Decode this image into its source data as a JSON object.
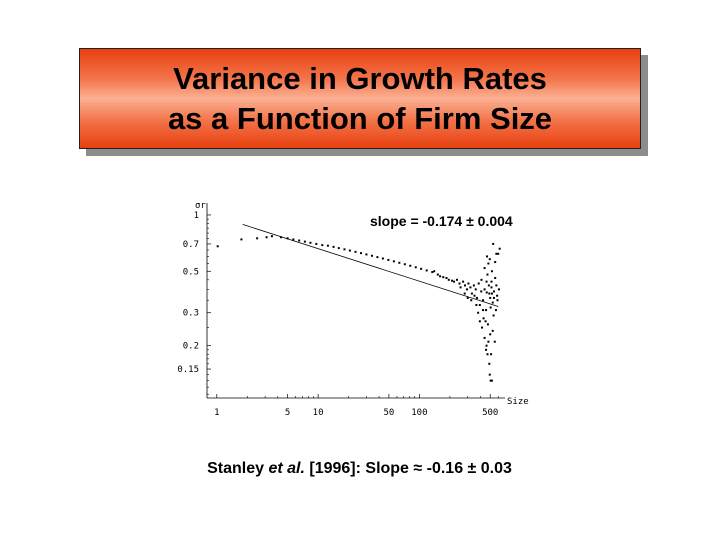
{
  "title": {
    "line1": "Variance in Growth Rates",
    "line2": "as a Function of Firm Size"
  },
  "chart_data": {
    "type": "scatter",
    "xlabel": "Size",
    "ylabel": "σr",
    "x_scale": "log",
    "y_scale": "log",
    "xlim": [
      0.8,
      700
    ],
    "ylim": [
      0.105,
      1.05
    ],
    "x_ticks": [
      1,
      5,
      10,
      50,
      100,
      500
    ],
    "x_tick_labels": [
      "1",
      "5",
      "10",
      "50",
      "100",
      "500"
    ],
    "y_ticks": [
      1,
      0.7,
      0.5,
      0.3,
      0.2,
      0.15
    ],
    "y_tick_labels": [
      "1",
      "0.7",
      "0.5",
      "0.3",
      "0.2",
      "0.15"
    ],
    "annotation": "slope = -0.174 ± 0.004",
    "grid": false,
    "fit_line": {
      "slope": -0.174,
      "x_start": 1.8,
      "x_end": 600,
      "y_start": 0.89
    },
    "series": [
      {
        "points": [
          [
            1.02,
            0.68
          ],
          [
            1.75,
            0.74
          ],
          [
            2.5,
            0.75
          ],
          [
            3.1,
            0.76
          ],
          [
            3.5,
            0.77
          ],
          [
            4.3,
            0.76
          ],
          [
            5,
            0.75
          ],
          [
            5.7,
            0.74
          ],
          [
            6.5,
            0.73
          ],
          [
            7.4,
            0.72
          ],
          [
            8.4,
            0.71
          ],
          [
            9.6,
            0.7
          ],
          [
            11,
            0.69
          ],
          [
            12.5,
            0.685
          ],
          [
            14.2,
            0.675
          ],
          [
            16,
            0.665
          ],
          [
            18.2,
            0.655
          ],
          [
            20.6,
            0.645
          ],
          [
            23.4,
            0.635
          ],
          [
            26.5,
            0.625
          ],
          [
            30,
            0.615
          ],
          [
            34,
            0.605
          ],
          [
            38.5,
            0.595
          ],
          [
            43.6,
            0.585
          ],
          [
            49.4,
            0.575
          ],
          [
            56,
            0.565
          ],
          [
            63.4,
            0.555
          ],
          [
            71.8,
            0.545
          ],
          [
            81.3,
            0.535
          ],
          [
            92,
            0.525
          ],
          [
            104,
            0.515
          ],
          [
            118,
            0.505
          ],
          [
            134,
            0.495
          ],
          [
            152,
            0.48
          ],
          [
            172,
            0.465
          ],
          [
            195,
            0.45
          ],
          [
            220,
            0.44
          ],
          [
            249,
            0.43
          ],
          [
            282,
            0.42
          ],
          [
            319,
            0.41
          ],
          [
            360,
            0.4
          ],
          [
            408,
            0.39
          ],
          [
            462,
            0.385
          ],
          [
            520,
            0.38
          ],
          [
            585,
            0.37
          ],
          [
            140,
            0.5
          ],
          [
            160,
            0.47
          ],
          [
            185,
            0.46
          ],
          [
            210,
            0.445
          ],
          [
            235,
            0.45
          ],
          [
            255,
            0.41
          ],
          [
            270,
            0.44
          ],
          [
            295,
            0.4
          ],
          [
            305,
            0.43
          ],
          [
            330,
            0.38
          ],
          [
            345,
            0.42
          ],
          [
            370,
            0.36
          ],
          [
            385,
            0.43
          ],
          [
            395,
            0.33
          ],
          [
            410,
            0.45
          ],
          [
            425,
            0.35
          ],
          [
            440,
            0.4
          ],
          [
            455,
            0.31
          ],
          [
            470,
            0.48
          ],
          [
            485,
            0.42
          ],
          [
            500,
            0.36
          ],
          [
            515,
            0.44
          ],
          [
            530,
            0.34
          ],
          [
            545,
            0.39
          ],
          [
            560,
            0.46
          ],
          [
            590,
            0.35
          ],
          [
            610,
            0.4
          ],
          [
            380,
            0.3
          ],
          [
            430,
            0.28
          ],
          [
            475,
            0.26
          ],
          [
            505,
            0.32
          ],
          [
            540,
            0.29
          ],
          [
            570,
            0.31
          ],
          [
            450,
            0.27
          ],
          [
            415,
            0.25
          ],
          [
            440,
            0.22
          ],
          [
            460,
            0.2
          ],
          [
            470,
            0.18
          ],
          [
            490,
            0.16
          ],
          [
            495,
            0.14
          ],
          [
            505,
            0.13
          ],
          [
            520,
            0.13
          ],
          [
            480,
            0.21
          ],
          [
            455,
            0.19
          ],
          [
            500,
            0.23
          ],
          [
            440,
            0.52
          ],
          [
            480,
            0.55
          ],
          [
            520,
            0.5
          ],
          [
            560,
            0.56
          ],
          [
            600,
            0.62
          ],
          [
            620,
            0.66
          ],
          [
            535,
            0.7
          ],
          [
            575,
            0.62
          ],
          [
            495,
            0.58
          ],
          [
            465,
            0.6
          ],
          [
            530,
            0.24
          ],
          [
            555,
            0.21
          ],
          [
            510,
            0.18
          ],
          [
            425,
            0.31
          ],
          [
            395,
            0.27
          ],
          [
            365,
            0.33
          ],
          [
            350,
            0.37
          ],
          [
            325,
            0.35
          ],
          [
            300,
            0.36
          ],
          [
            280,
            0.38
          ],
          [
            460,
            0.44
          ],
          [
            490,
            0.38
          ],
          [
            515,
            0.41
          ],
          [
            545,
            0.36
          ],
          [
            575,
            0.42
          ]
        ]
      }
    ]
  },
  "citation": {
    "prefix": "Stanley ",
    "etal": "et al.",
    "suffix": " [1996]:  Slope ≈ -0.16 ± 0.03"
  }
}
